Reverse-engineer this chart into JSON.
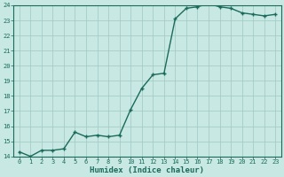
{
  "x": [
    0,
    1,
    2,
    3,
    4,
    5,
    6,
    7,
    8,
    9,
    10,
    11,
    12,
    13,
    14,
    15,
    16,
    17,
    18,
    19,
    20,
    21,
    22,
    23
  ],
  "y": [
    14.3,
    14.0,
    14.4,
    14.4,
    14.5,
    15.6,
    15.3,
    15.4,
    15.3,
    15.4,
    17.1,
    18.5,
    19.4,
    19.5,
    23.1,
    23.8,
    23.9,
    24.1,
    23.9,
    23.8,
    23.5,
    23.4,
    23.3,
    23.4
  ],
  "xlabel": "Humidex (Indice chaleur)",
  "line_color": "#1a6b5a",
  "bg_color": "#c8e8e4",
  "grid_color": "#a0c8c4",
  "ylim": [
    14,
    24
  ],
  "xlim_min": -0.5,
  "xlim_max": 23.5,
  "yticks": [
    14,
    15,
    16,
    17,
    18,
    19,
    20,
    21,
    22,
    23,
    24
  ],
  "xticks": [
    0,
    1,
    2,
    3,
    4,
    5,
    6,
    7,
    8,
    9,
    10,
    11,
    12,
    13,
    14,
    15,
    16,
    17,
    18,
    19,
    20,
    21,
    22,
    23
  ],
  "markersize": 3.5,
  "linewidth": 1.0,
  "tick_fontsize": 5.0,
  "xlabel_fontsize": 6.5
}
